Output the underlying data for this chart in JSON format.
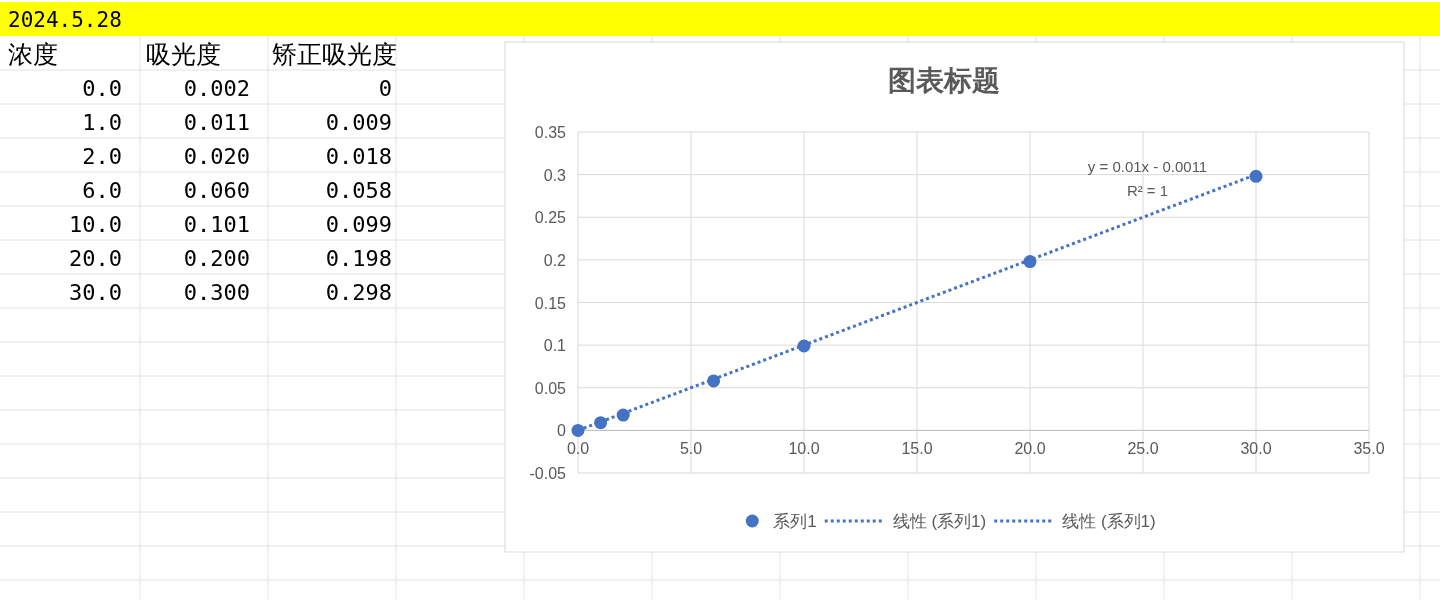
{
  "chart_data": [
    {
      "type": "other",
      "title": "2024.5.28",
      "annotations": [
        "浓度",
        "吸光度",
        "矫正吸光度",
        "0.0",
        "0.002",
        "0",
        "1.0",
        "0.011",
        "0.009",
        "2.0",
        "0.020",
        "0.018",
        "6.0",
        "0.060",
        "0.058",
        "10.0",
        "0.101",
        "0.099",
        "20.0",
        "0.200",
        "0.198",
        "30.0",
        "0.300",
        "0.298"
      ]
    },
    {
      "type": "scatter",
      "title": "图表标题",
      "x": [
        0,
        1,
        2,
        6,
        10,
        20,
        30
      ],
      "series": [
        {
          "name": "系列1",
          "type": "scatter",
          "color": "#4472c4",
          "marker": "circle",
          "values": [
            0,
            0.009,
            0.018,
            0.058,
            0.099,
            0.198,
            0.298
          ]
        },
        {
          "name": "线性 (系列1)",
          "type": "line",
          "color": "#4472c4",
          "line_style": "dotted",
          "marker": "none",
          "values": [
            0,
            0.01,
            0.02,
            0.06,
            0.1,
            0.2,
            0.3
          ]
        },
        {
          "name": "线性 (系列1)",
          "type": "line",
          "color": "#4472c4",
          "line_style": "dotted",
          "marker": "none",
          "values": [
            null,
            null,
            null,
            null,
            null,
            null,
            null
          ]
        }
      ],
      "xlim": [
        0,
        35
      ],
      "xticks": [
        {
          "value": 0,
          "label": "0.0"
        },
        {
          "value": 5,
          "label": "5.0"
        },
        {
          "value": 10,
          "label": "10.0"
        },
        {
          "value": 15,
          "label": "15.0"
        },
        {
          "value": 20,
          "label": "20.0"
        },
        {
          "value": 25,
          "label": "25.0"
        },
        {
          "value": 30,
          "label": "30.0"
        },
        {
          "value": 35,
          "label": "35.0"
        }
      ],
      "ylim": [
        -0.05,
        0.35
      ],
      "yticks": [
        -0.05,
        0,
        0.05,
        0.1,
        0.15,
        0.2,
        0.25,
        0.3,
        0.35
      ],
      "grid": true,
      "legend": "bottom",
      "annotations": [
        "y = 0.01x - 0.0011",
        "R² = 1"
      ]
    }
  ]
}
